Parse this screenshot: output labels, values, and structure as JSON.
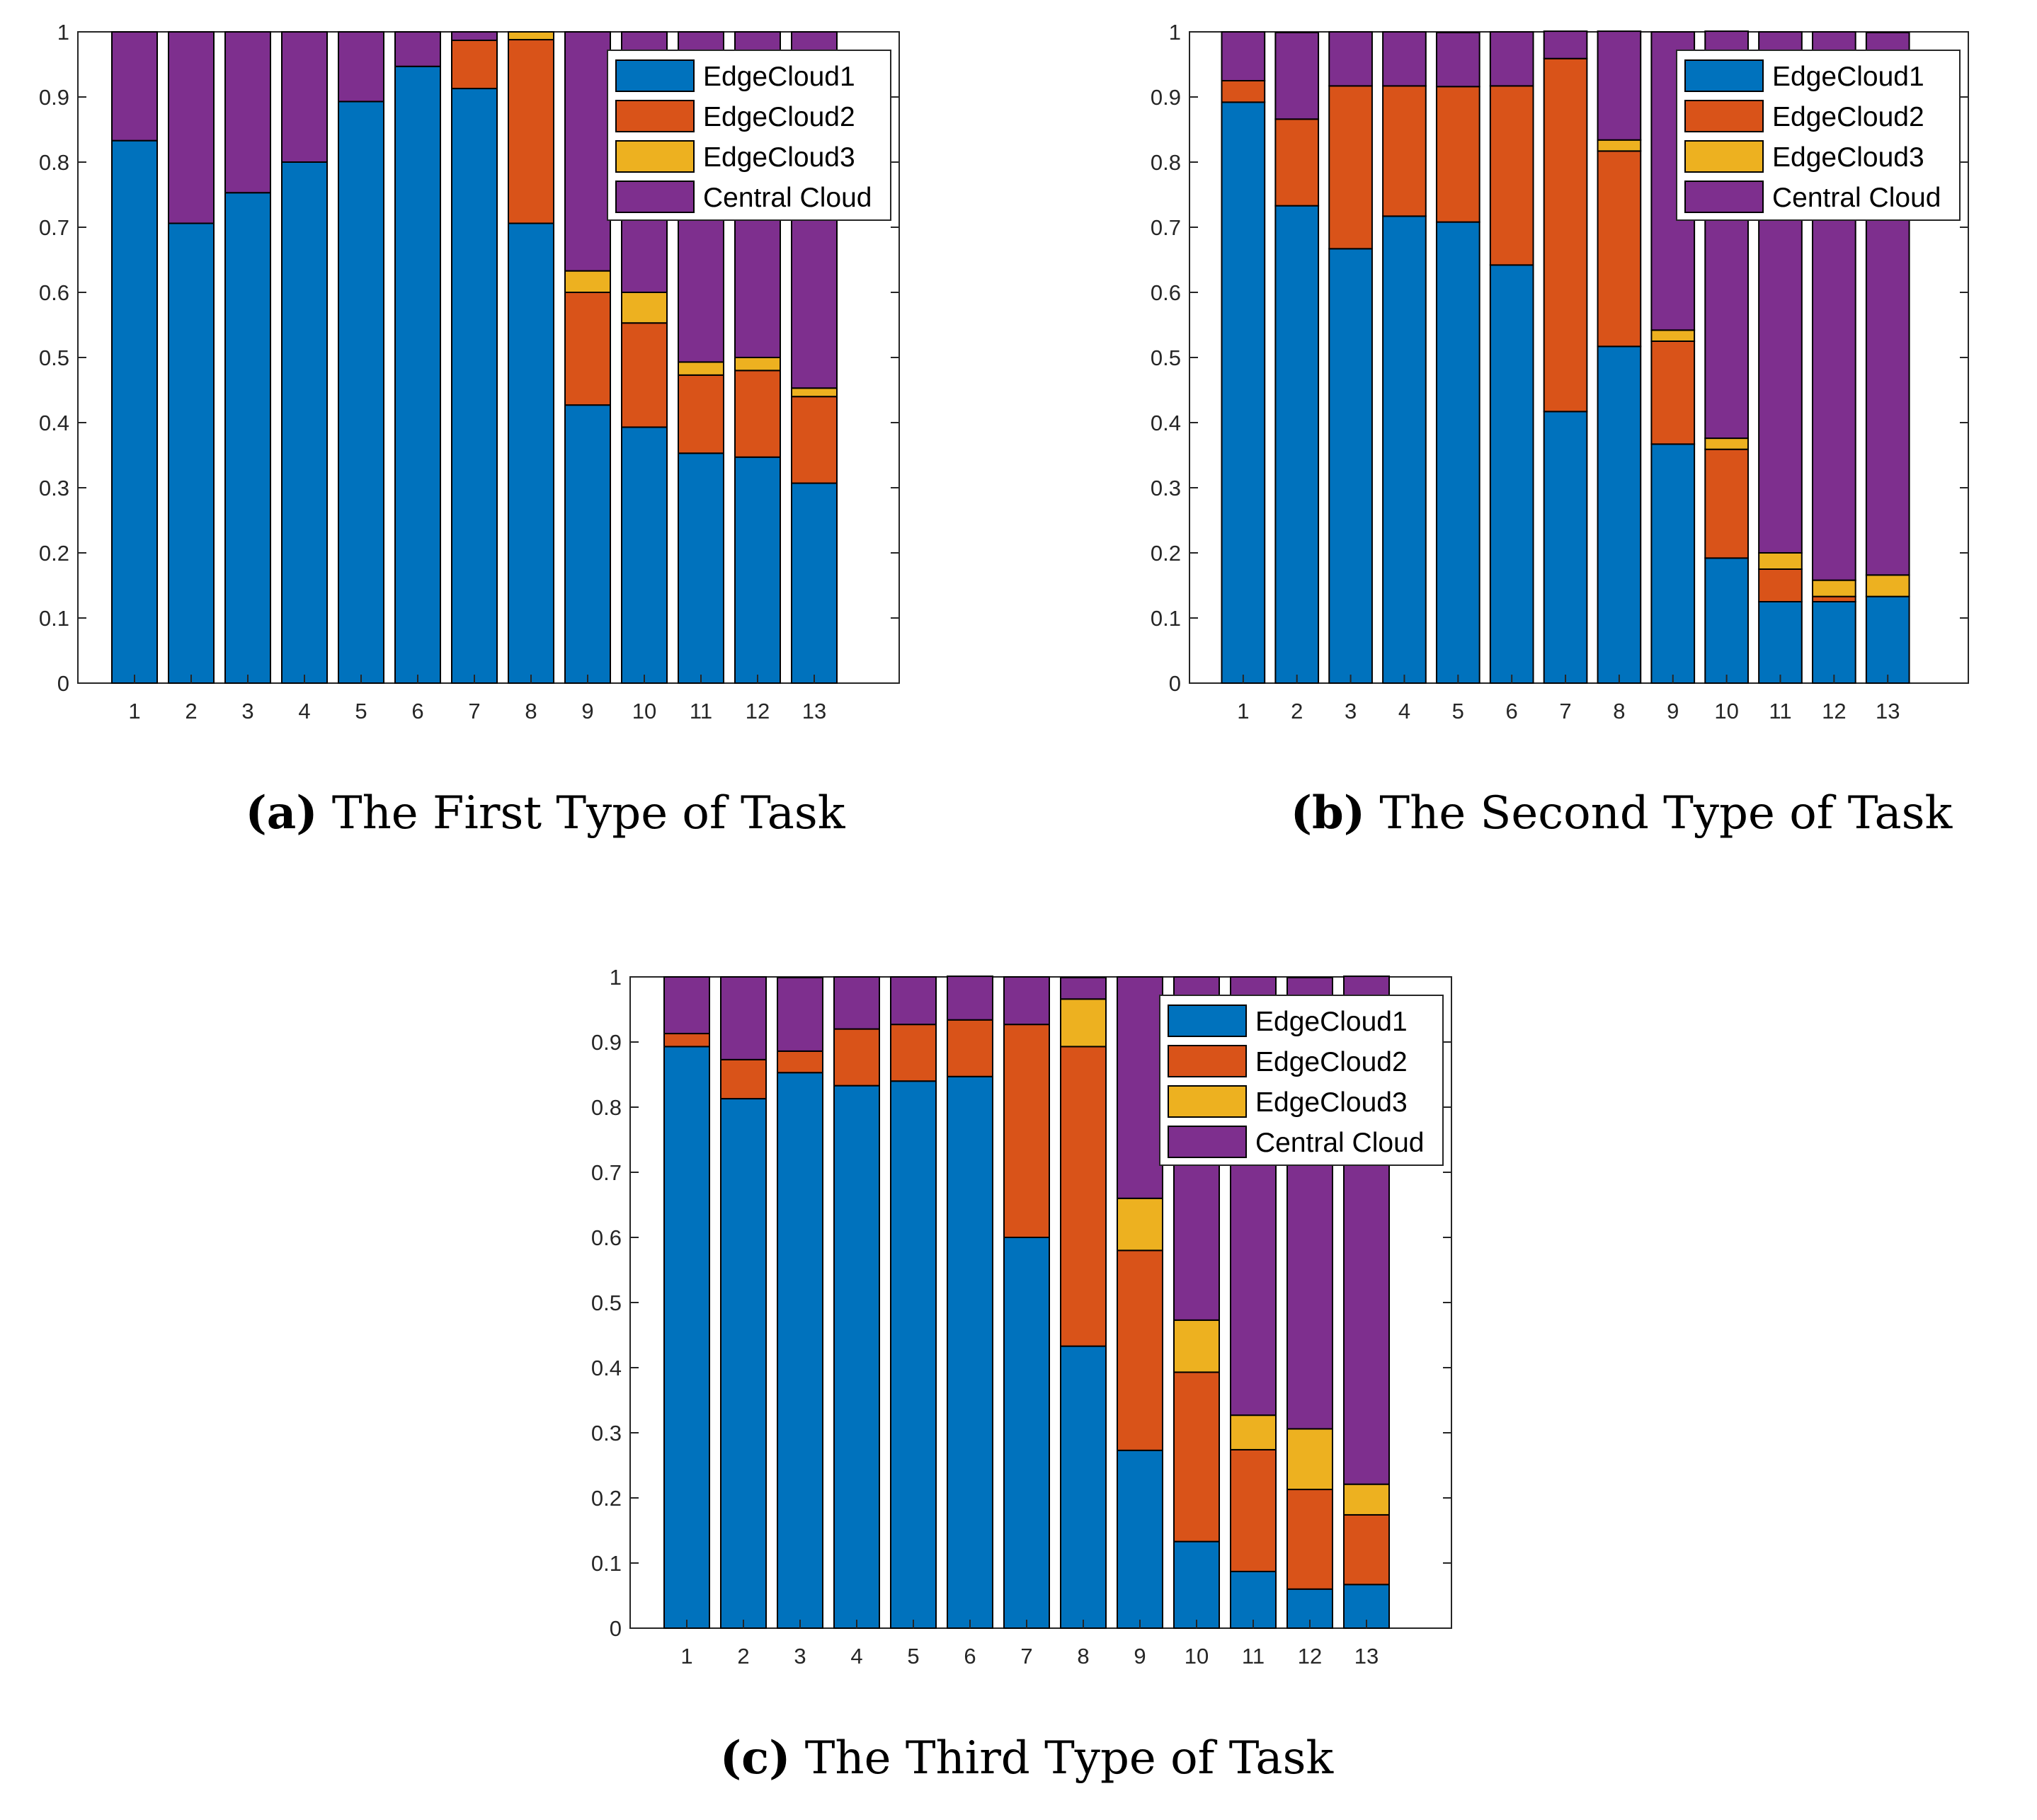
{
  "colors": {
    "EdgeCloud1": "#0072bd",
    "EdgeCloud2": "#d95319",
    "EdgeCloud3": "#edb120",
    "Central Cloud": "#7e2f8e"
  },
  "chart_data": [
    {
      "type": "bar",
      "stacked": true,
      "caption_letter": "(a)",
      "caption_text": "The First Type of Task",
      "categories": [
        "1",
        "2",
        "3",
        "4",
        "5",
        "6",
        "7",
        "8",
        "9",
        "10",
        "11",
        "12",
        "13"
      ],
      "ylim": [
        0,
        1
      ],
      "yticks": [
        "0",
        "0.1",
        "0.2",
        "0.3",
        "0.4",
        "0.5",
        "0.6",
        "0.7",
        "0.8",
        "0.9",
        "1"
      ],
      "legend_position": "top-right",
      "series": [
        {
          "name": "EdgeCloud1",
          "values": [
            0.833,
            0.706,
            0.753,
            0.8,
            0.893,
            0.947,
            0.913,
            0.706,
            0.427,
            0.393,
            0.353,
            0.347,
            0.307
          ]
        },
        {
          "name": "EdgeCloud2",
          "values": [
            0,
            0,
            0,
            0,
            0,
            0,
            0.074,
            0.282,
            0.173,
            0.16,
            0.12,
            0.133,
            0.133
          ]
        },
        {
          "name": "EdgeCloud3",
          "values": [
            0,
            0,
            0,
            0,
            0,
            0,
            0,
            0.012,
            0.033,
            0.047,
            0.02,
            0.02,
            0.013
          ]
        },
        {
          "name": "Central Cloud",
          "values": [
            0.167,
            0.294,
            0.247,
            0.2,
            0.107,
            0.053,
            0.013,
            0,
            0.367,
            0.4,
            0.507,
            0.5,
            0.547
          ]
        }
      ]
    },
    {
      "type": "bar",
      "stacked": true,
      "caption_letter": "(b)",
      "caption_text": "The Second Type of Task",
      "categories": [
        "1",
        "2",
        "3",
        "4",
        "5",
        "6",
        "7",
        "8",
        "9",
        "10",
        "11",
        "12",
        "13"
      ],
      "ylim": [
        0,
        1
      ],
      "yticks": [
        "0",
        "0.1",
        "0.2",
        "0.3",
        "0.4",
        "0.5",
        "0.6",
        "0.7",
        "0.8",
        "0.9",
        "1"
      ],
      "legend_position": "top-right",
      "series": [
        {
          "name": "EdgeCloud1",
          "values": [
            0.892,
            0.733,
            0.667,
            0.717,
            0.708,
            0.642,
            0.417,
            0.517,
            0.367,
            0.192,
            0.125,
            0.125,
            0.133
          ]
        },
        {
          "name": "EdgeCloud2",
          "values": [
            0.033,
            0.133,
            0.25,
            0.2,
            0.208,
            0.275,
            0.542,
            0.3,
            0.158,
            0.167,
            0.05,
            0.008,
            0
          ]
        },
        {
          "name": "EdgeCloud3",
          "values": [
            0,
            0,
            0,
            0,
            0,
            0,
            0,
            0.017,
            0.017,
            0.017,
            0.025,
            0.025,
            0.033
          ]
        },
        {
          "name": "Central Cloud",
          "values": [
            0.075,
            0.133,
            0.083,
            0.083,
            0.083,
            0.083,
            0.042,
            0.167,
            0.458,
            0.625,
            0.8,
            0.842,
            0.833
          ]
        }
      ]
    },
    {
      "type": "bar",
      "stacked": true,
      "caption_letter": "(c)",
      "caption_text": "The Third Type of Task",
      "categories": [
        "1",
        "2",
        "3",
        "4",
        "5",
        "6",
        "7",
        "8",
        "9",
        "10",
        "11",
        "12",
        "13"
      ],
      "ylim": [
        0,
        1
      ],
      "yticks": [
        "0",
        "0.1",
        "0.2",
        "0.3",
        "0.4",
        "0.5",
        "0.6",
        "0.7",
        "0.8",
        "0.9",
        "1"
      ],
      "legend_position": "top-right",
      "series": [
        {
          "name": "EdgeCloud1",
          "values": [
            0.893,
            0.813,
            0.853,
            0.833,
            0.84,
            0.847,
            0.6,
            0.433,
            0.273,
            0.133,
            0.087,
            0.06,
            0.067
          ]
        },
        {
          "name": "EdgeCloud2",
          "values": [
            0.02,
            0.06,
            0.033,
            0.087,
            0.087,
            0.087,
            0.327,
            0.46,
            0.307,
            0.26,
            0.187,
            0.153,
            0.107
          ]
        },
        {
          "name": "EdgeCloud3",
          "values": [
            0,
            0,
            0,
            0,
            0,
            0,
            0,
            0.073,
            0.08,
            0.08,
            0.053,
            0.093,
            0.047
          ]
        },
        {
          "name": "Central Cloud",
          "values": [
            0.087,
            0.127,
            0.113,
            0.08,
            0.073,
            0.067,
            0.073,
            0.033,
            0.34,
            0.527,
            0.673,
            0.693,
            0.78
          ]
        }
      ]
    }
  ]
}
